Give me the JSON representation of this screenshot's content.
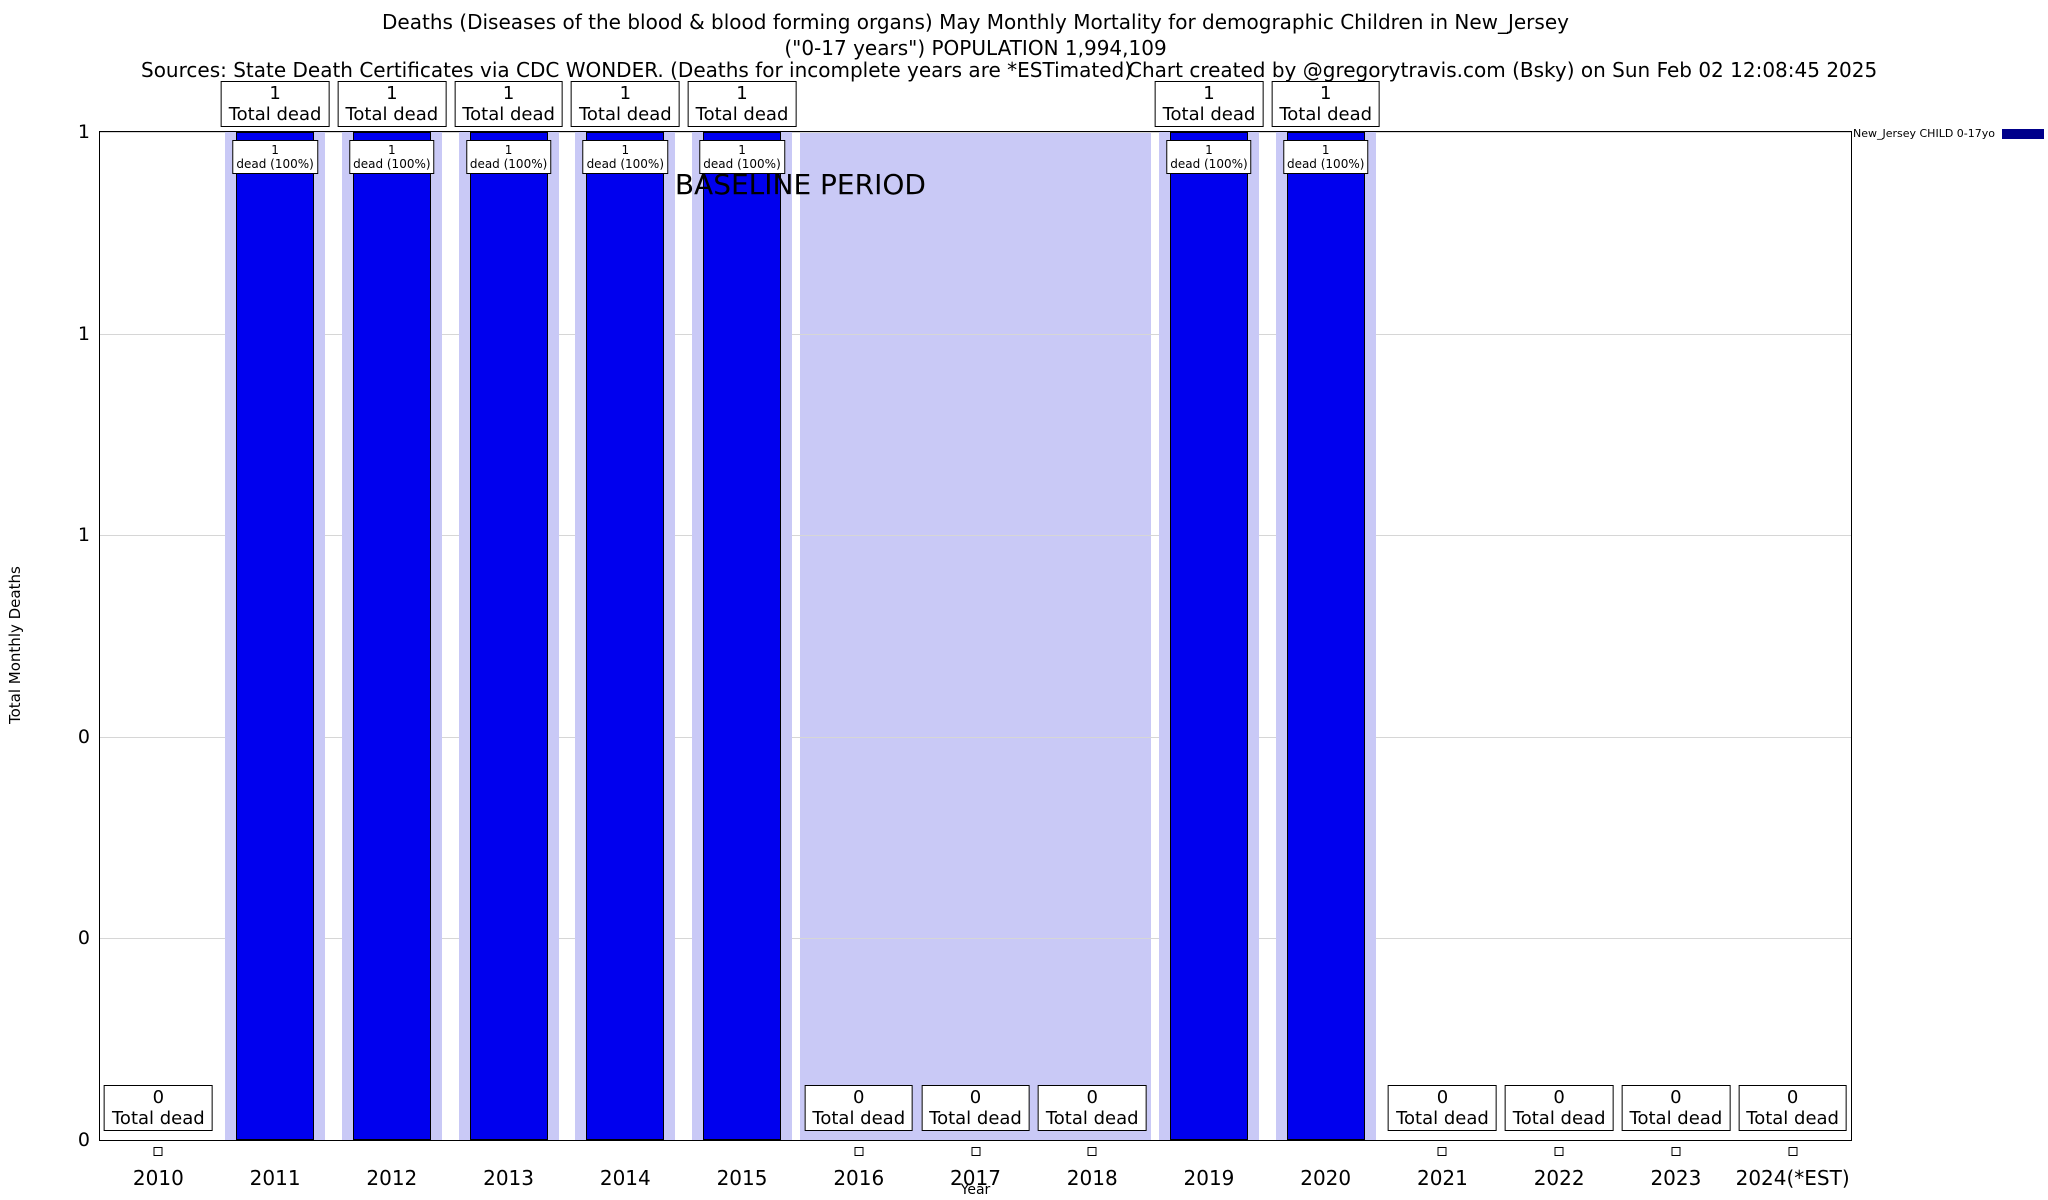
{
  "header": {
    "title_line1": "Deaths (Diseases of the blood & blood forming organs) May Monthly Mortality for demographic Children in New_Jersey",
    "title_line2": "(\"0-17 years\") POPULATION 1,994,109",
    "sources": "Sources: State Death Certificates via CDC WONDER. (Deaths for incomplete years are *ESTimated)",
    "credit": "Chart created by @gregorytravis.com (Bsky) on Sun Feb 02 12:08:45 2025"
  },
  "legend": {
    "label": "New_Jersey CHILD 0-17yo",
    "swatch_color": "#00008b"
  },
  "axes": {
    "x_title": "Year",
    "y_title": "Total Monthly Deaths",
    "y_ticks": [
      {
        "value": 1.0,
        "label": "1"
      },
      {
        "value": 0.8,
        "label": "1"
      },
      {
        "value": 0.6,
        "label": "1"
      },
      {
        "value": 0.4,
        "label": "0"
      },
      {
        "value": 0.2,
        "label": "0"
      },
      {
        "value": 0.0,
        "label": "0"
      }
    ]
  },
  "chart_data": {
    "type": "bar",
    "title": "Deaths (Diseases of the blood & blood forming organs) May Monthly Mortality for demographic Children in New_Jersey",
    "xlabel": "Year",
    "ylabel": "Total Monthly Deaths",
    "ylim": [
      0,
      1
    ],
    "categories": [
      "2010",
      "2011",
      "2012",
      "2013",
      "2014",
      "2015",
      "2016",
      "2017",
      "2018",
      "2019",
      "2020",
      "2021",
      "2022",
      "2023",
      "2024(*EST)"
    ],
    "series": [
      {
        "name": "New_Jersey CHILD 0-17yo",
        "values": [
          0,
          1,
          1,
          1,
          1,
          1,
          0,
          0,
          0,
          1,
          1,
          0,
          0,
          0,
          0
        ]
      }
    ],
    "bar_color": "#0000ee",
    "band_color": "#c9c9f6",
    "total_dead_label": "Total dead",
    "dead_pct_label": "dead (100%)",
    "baseline_period": {
      "label": "BASELINE PERIOD",
      "start": "2016",
      "end": "2018"
    },
    "grid": true,
    "legend_position": "top-right"
  }
}
